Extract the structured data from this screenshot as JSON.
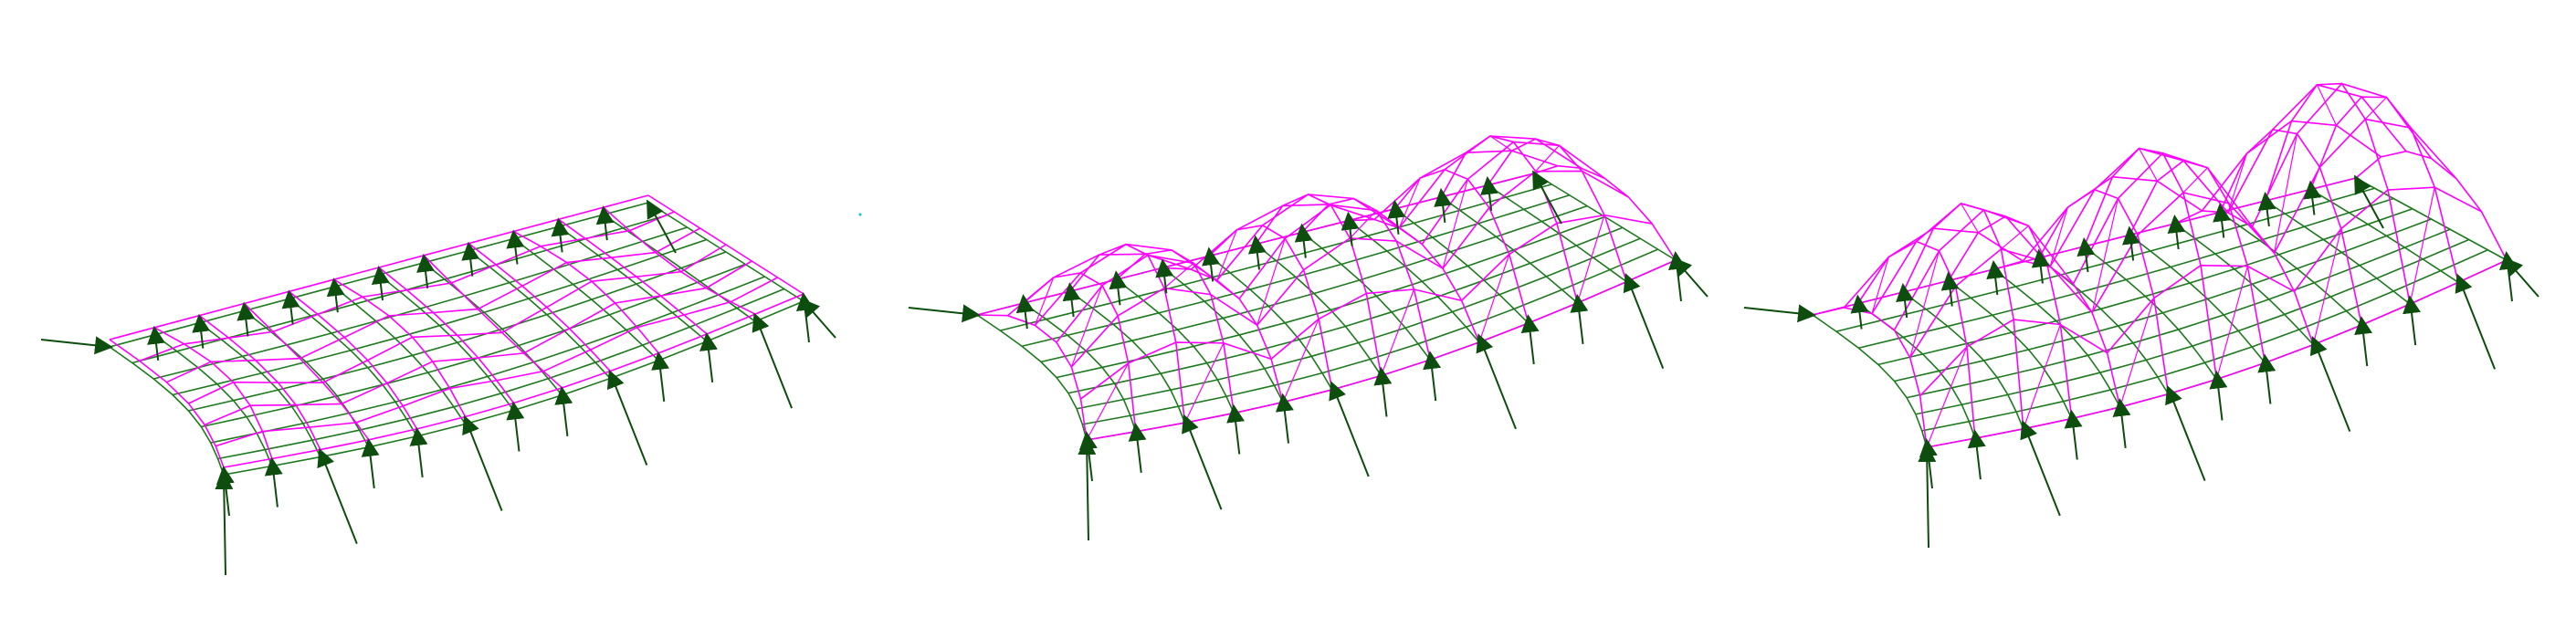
{
  "figure": {
    "panels": [
      {
        "id": "panel-1",
        "deformation": 0.15,
        "bays": 4,
        "arch_rise": 0.0,
        "arch_rise_back": 0.0,
        "scale": 1.0
      },
      {
        "id": "panel-2",
        "deformation": 1.0,
        "bays": 3,
        "arch_rise": 110.0,
        "arch_rise_back": 120.0,
        "scale": 1.0
      },
      {
        "id": "panel-3",
        "deformation": 1.6,
        "bays": 3,
        "arch_rise": 160.0,
        "arch_rise_back": 190.0,
        "scale": 1.0
      }
    ],
    "colors": {
      "base_mesh": "#1e7a1e",
      "deformed_mesh": "#ff00ff",
      "force_arrow": "#0d4d0d",
      "stray_mark": "#00cccc"
    },
    "icons": {
      "arrow": "force-arrow-icon"
    }
  }
}
